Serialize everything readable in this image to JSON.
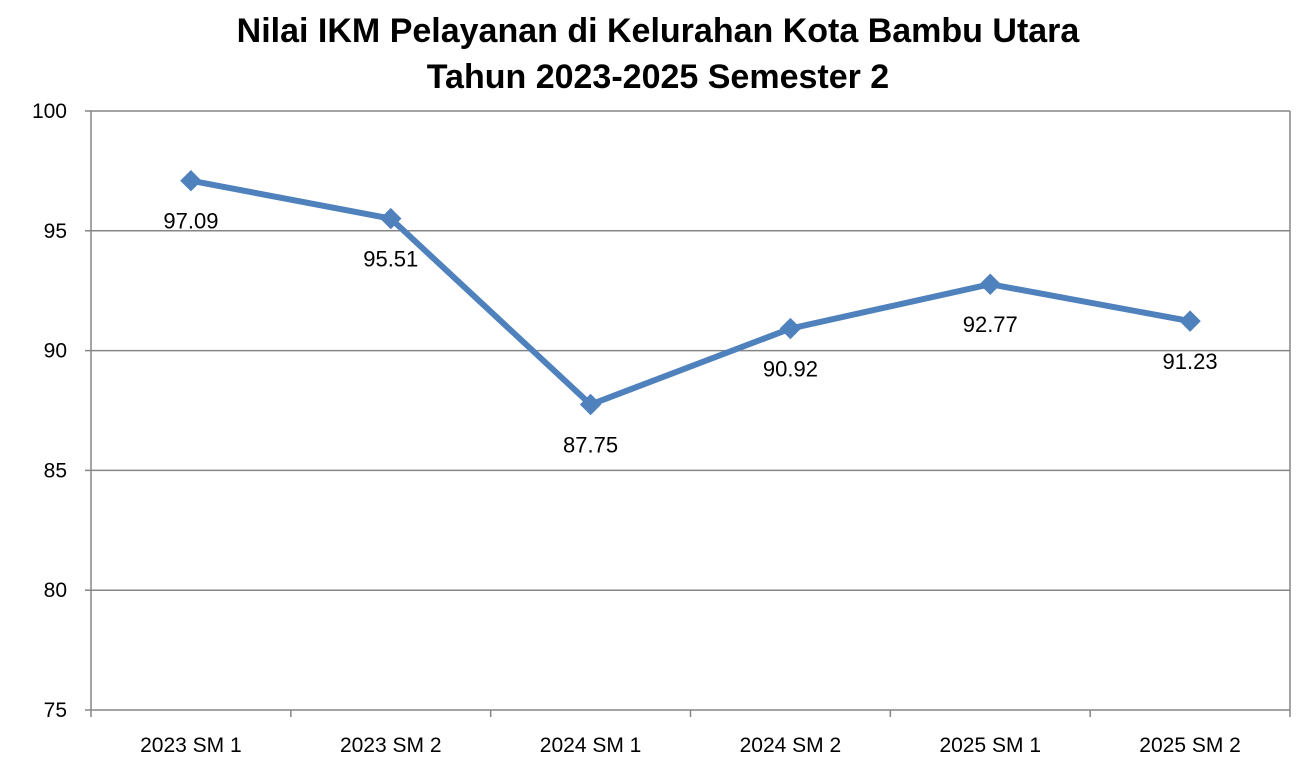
{
  "chart_data": {
    "type": "line",
    "title_lines": [
      "Nilai IKM Pelayanan di Kelurahan Kota Bambu Utara",
      "Tahun 2023-2025 Semester 2"
    ],
    "categories": [
      "2023 SM 1",
      "2023 SM 2",
      "2024 SM 1",
      "2024 SM 2",
      "2025 SM 1",
      "2025 SM 2"
    ],
    "series": [
      {
        "values": [
          97.09,
          95.51,
          87.75,
          90.92,
          92.77,
          91.23
        ],
        "labels": [
          "97.09",
          "95.51",
          "87.75",
          "90.92",
          "92.77",
          "91.23"
        ],
        "color": "#4F81BD"
      }
    ],
    "ylim": [
      75,
      100
    ],
    "yticks": [
      75,
      80,
      85,
      90,
      95,
      100
    ],
    "ytick_labels": [
      "75",
      "80",
      "85",
      "90",
      "95",
      "100"
    ],
    "grid": true,
    "gridline_color": "#868686",
    "marker": "diamond",
    "legend": "none"
  }
}
